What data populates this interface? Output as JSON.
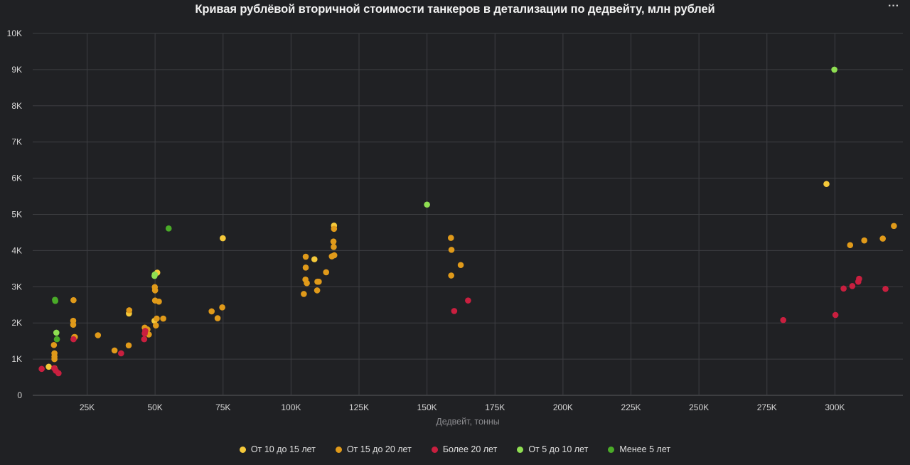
{
  "title": "Кривая рублёвой вторичной стоимости танкеров в детализации по дедвейту, млн рублей",
  "menu_icon": "more-horizontal-icon",
  "menu_label": "···",
  "chart_data": {
    "type": "scatter",
    "title": "Кривая рублёвой вторичной стоимости танкеров в детализации по дедвейту, млн рублей",
    "xlabel": "Дедвейт, тонны",
    "ylabel": "",
    "xlim": [
      5000,
      325000
    ],
    "ylim": [
      0,
      10000
    ],
    "x_ticks": [
      25000,
      50000,
      75000,
      100000,
      125000,
      150000,
      175000,
      200000,
      225000,
      250000,
      275000,
      300000
    ],
    "x_tick_labels": [
      "25K",
      "50K",
      "75K",
      "100K",
      "125K",
      "150K",
      "175K",
      "200K",
      "225K",
      "250K",
      "275K",
      "300K"
    ],
    "y_ticks": [
      0,
      1000,
      2000,
      3000,
      4000,
      5000,
      6000,
      7000,
      8000,
      9000,
      10000
    ],
    "y_tick_labels": [
      "0",
      "1K",
      "2K",
      "3K",
      "4K",
      "5K",
      "6K",
      "7K",
      "8K",
      "9K",
      "10K"
    ],
    "grid": true,
    "legend_position": "bottom",
    "series": [
      {
        "name": "От 10 до 15 лет",
        "color": "#f5c93a",
        "points": [
          [
            10900,
            790
          ],
          [
            40400,
            2260
          ],
          [
            49800,
            2060
          ],
          [
            50800,
            3390
          ],
          [
            74900,
            4340
          ],
          [
            108600,
            3760
          ],
          [
            115800,
            4690
          ],
          [
            296900,
            5840
          ]
        ]
      },
      {
        "name": "От 15 до 20 лет",
        "color": "#e09a1a",
        "points": [
          [
            12800,
            1390
          ],
          [
            13000,
            1160
          ],
          [
            13000,
            1070
          ],
          [
            13000,
            1000
          ],
          [
            13000,
            750
          ],
          [
            19900,
            2060
          ],
          [
            19900,
            1950
          ],
          [
            20000,
            2630
          ],
          [
            20300,
            1610
          ],
          [
            20500,
            1610
          ],
          [
            29000,
            1660
          ],
          [
            35100,
            1240
          ],
          [
            40300,
            1380
          ],
          [
            40500,
            2350
          ],
          [
            46200,
            1870
          ],
          [
            47200,
            1820
          ],
          [
            47700,
            1680
          ],
          [
            49900,
            2990
          ],
          [
            50000,
            2900
          ],
          [
            50000,
            2620
          ],
          [
            50300,
            1930
          ],
          [
            50600,
            2120
          ],
          [
            51400,
            2590
          ],
          [
            53000,
            2120
          ],
          [
            70800,
            2320
          ],
          [
            73000,
            2130
          ],
          [
            74700,
            2430
          ],
          [
            104700,
            2800
          ],
          [
            105300,
            3200
          ],
          [
            105400,
            3530
          ],
          [
            105400,
            3830
          ],
          [
            105800,
            3100
          ],
          [
            109600,
            2900
          ],
          [
            109700,
            3140
          ],
          [
            110200,
            3140
          ],
          [
            112900,
            3400
          ],
          [
            115000,
            3840
          ],
          [
            115600,
            4250
          ],
          [
            115700,
            4100
          ],
          [
            115800,
            4600
          ],
          [
            115900,
            3870
          ],
          [
            158800,
            4350
          ],
          [
            158900,
            3310
          ],
          [
            159000,
            4020
          ],
          [
            162400,
            3600
          ],
          [
            305600,
            4150
          ],
          [
            310800,
            4280
          ],
          [
            317600,
            4330
          ],
          [
            321700,
            4680
          ]
        ]
      },
      {
        "name": "Более 20 лет",
        "color": "#c91f3f",
        "points": [
          [
            8300,
            730
          ],
          [
            12900,
            750
          ],
          [
            13500,
            680
          ],
          [
            14500,
            610
          ],
          [
            20000,
            1550
          ],
          [
            37500,
            1160
          ],
          [
            46000,
            1550
          ],
          [
            46200,
            1710
          ],
          [
            46400,
            1780
          ],
          [
            160000,
            2330
          ],
          [
            165100,
            2620
          ],
          [
            281000,
            2080
          ],
          [
            300200,
            2220
          ],
          [
            303200,
            2950
          ],
          [
            306400,
            3020
          ],
          [
            308600,
            3140
          ],
          [
            308900,
            3220
          ],
          [
            318600,
            2940
          ]
        ]
      },
      {
        "name": "От 5 до 10 лет",
        "color": "#8fdf52",
        "points": [
          [
            13700,
            1730
          ],
          [
            49800,
            3300
          ],
          [
            49900,
            3340
          ],
          [
            150000,
            5270
          ],
          [
            299800,
            9000
          ]
        ]
      },
      {
        "name": "Менее 5 лет",
        "color": "#4aab28",
        "points": [
          [
            13200,
            2640
          ],
          [
            13300,
            2610
          ],
          [
            13900,
            1550
          ],
          [
            55000,
            4610
          ]
        ]
      }
    ]
  }
}
